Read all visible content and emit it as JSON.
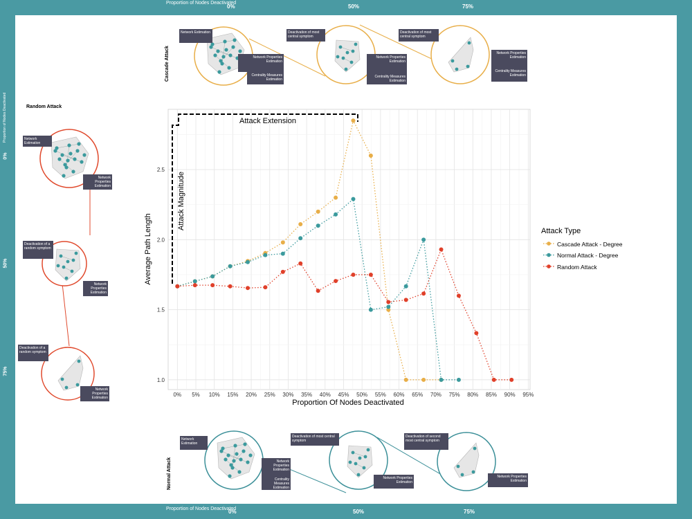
{
  "frame": {
    "color": "#4a9aa3",
    "top_bar": {
      "label": "Proportion of Nodes Deactivated",
      "ticks": [
        "0%",
        "50%",
        "75%"
      ]
    },
    "bottom_bar": {
      "label": "Proportion of Nodes Deactivated",
      "ticks": [
        "0%",
        "50%",
        "75%"
      ]
    },
    "left_bar": {
      "label": "Proportion of Nodes Deactivated",
      "ticks": [
        "0%",
        "50%",
        "75%"
      ]
    }
  },
  "panels": {
    "cascade": {
      "title": "Cascade Attack",
      "color": "#e8ae48",
      "c1": {
        "tag_a": "Network Estimation",
        "tag_b": "Network Properties Estimation",
        "tag_c": "Centrality Measures Estimation"
      },
      "c2": {
        "tag_a": "Deactivation of most central symptom",
        "tag_b": "Network Properties Estimation",
        "tag_c": "Centrality Measures Estimation"
      },
      "c3": {
        "tag_a": "Deactivation of most central symptom",
        "tag_b": "Network Properties Estimation",
        "tag_c": "Centrality Measures Estimation"
      }
    },
    "random": {
      "title": "Random Attack",
      "color": "#e0492c",
      "c1": {
        "tag_a": "Network Estimation",
        "tag_b": "Network Properties Estimation"
      },
      "c2": {
        "tag_a": "Deactivation of a random symptom",
        "tag_b": "Network Properties Estimation"
      },
      "c3": {
        "tag_a": "Deactivation of a random symptom",
        "tag_b": "Network Properties Estimation"
      }
    },
    "normal": {
      "title": "Normal Attack",
      "color": "#3b8f98",
      "c1": {
        "tag_a": "Network Estimation",
        "tag_b": "Network Properties Estimation",
        "tag_c": "Centrality Measures Estimation"
      },
      "c2": {
        "tag_a": "Deactivation of most central symptom",
        "tag_b": "Network Properties Estimation"
      },
      "c3": {
        "tag_a": "Deactivation of second most central symptom",
        "tag_b": "Network Properties Estimation"
      }
    }
  },
  "chart_data": {
    "type": "line",
    "xlabel": "Proportion Of Nodes Deactivated",
    "ylabel": "Average Path Length",
    "x_ticks": [
      "0%",
      "5%",
      "10%",
      "15%",
      "20%",
      "25%",
      "30%",
      "35%",
      "40%",
      "45%",
      "50%",
      "55%",
      "60%",
      "65%",
      "70%",
      "75%",
      "80%",
      "85%",
      "90%",
      "95%"
    ],
    "xlim": [
      -2.5,
      95.5
    ],
    "y_ticks": [
      "1.0",
      "1.5",
      "2.0",
      "2.5"
    ],
    "ylim": [
      0.93,
      2.93
    ],
    "grid": true,
    "legend_title": "Attack Type",
    "legend_position": "right",
    "annotations": {
      "extension": "Attack Extension",
      "magnitude": "Attack Magnitude"
    },
    "series": [
      {
        "name": "Cascade Attack - Degree",
        "color": "#e8ae48",
        "x": [
          0,
          4.76,
          9.52,
          14.29,
          19.05,
          23.81,
          28.57,
          33.33,
          38.1,
          42.86,
          47.62,
          52.38,
          57.14,
          61.9,
          66.67,
          71.43
        ],
        "y": [
          1.667,
          1.703,
          1.738,
          1.81,
          1.847,
          1.905,
          1.98,
          2.11,
          2.2,
          2.3,
          2.85,
          2.6,
          1.5,
          1.0,
          1.0,
          1.0
        ]
      },
      {
        "name": "Normal Attack - Degree",
        "color": "#3b9a9d",
        "x": [
          0,
          4.76,
          9.52,
          14.29,
          19.05,
          23.81,
          28.57,
          33.33,
          38.1,
          42.86,
          47.62,
          52.38,
          57.14,
          61.9,
          66.67,
          71.43,
          76.19
        ],
        "y": [
          1.667,
          1.703,
          1.738,
          1.81,
          1.84,
          1.89,
          1.9,
          2.01,
          2.1,
          2.18,
          2.29,
          1.5,
          1.52,
          1.667,
          2.0,
          1.0,
          1.0
        ]
      },
      {
        "name": "Random Attack",
        "color": "#e0402a",
        "x": [
          0,
          4.76,
          9.52,
          14.29,
          19.05,
          23.81,
          28.57,
          33.33,
          38.1,
          42.86,
          47.62,
          52.38,
          57.14,
          61.9,
          66.67,
          71.43,
          76.19,
          80.95,
          85.71,
          90.48
        ],
        "y": [
          1.667,
          1.675,
          1.675,
          1.667,
          1.655,
          1.66,
          1.77,
          1.83,
          1.635,
          1.705,
          1.75,
          1.75,
          1.555,
          1.57,
          1.615,
          1.93,
          1.6,
          1.333,
          1.0,
          1.0
        ]
      }
    ]
  }
}
